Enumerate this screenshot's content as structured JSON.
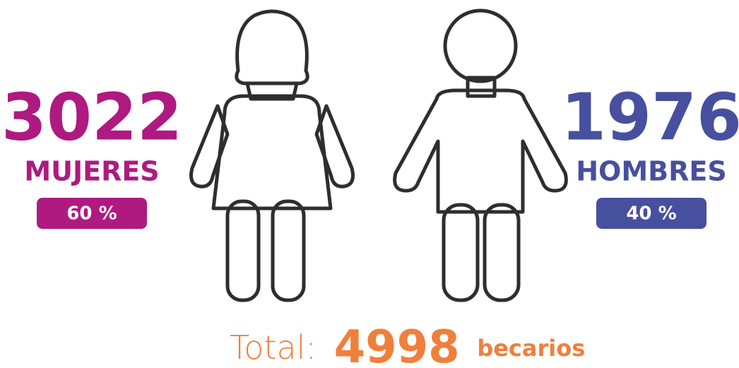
{
  "chart_data": {
    "type": "pictogram",
    "categories": [
      "MUJERES",
      "HOMBRES"
    ],
    "values": [
      3022,
      1976
    ],
    "colors": [
      "#ae1a80",
      "#474f9f"
    ],
    "percent": {
      "values": [
        60,
        40
      ],
      "value_labels": [
        "60 %",
        "40 %"
      ]
    },
    "total": {
      "prefix": "Total:",
      "value": 4998,
      "suffix": "becarios",
      "color": "#f07f3c"
    }
  }
}
